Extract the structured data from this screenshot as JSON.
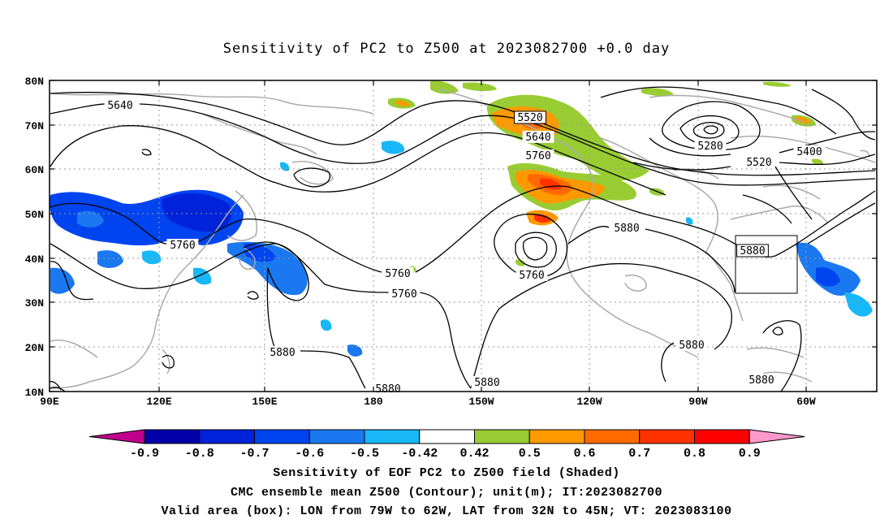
{
  "title": "Sensitivity of PC2 to Z500 at 2023082700 +0.0 day",
  "lat_labels": [
    "80N",
    "70N",
    "60N",
    "50N",
    "40N",
    "30N",
    "20N",
    "10N"
  ],
  "lon_labels": [
    "90E",
    "120E",
    "150E",
    "180",
    "150W",
    "120W",
    "90W",
    "60W"
  ],
  "contour_labels": [
    {
      "text": "5640",
      "kind": "z"
    },
    {
      "text": "5520",
      "kind": "z"
    },
    {
      "text": "5640",
      "kind": "z"
    },
    {
      "text": "5760",
      "kind": "z"
    },
    {
      "text": "5280",
      "kind": "z"
    },
    {
      "text": "5400",
      "kind": "z"
    },
    {
      "text": "5520",
      "kind": "z"
    },
    {
      "text": "5760",
      "kind": "z"
    },
    {
      "text": "5880",
      "kind": "z"
    },
    {
      "text": "5760",
      "kind": "z"
    },
    {
      "text": "5760",
      "kind": "z"
    },
    {
      "text": "5880",
      "kind": "z"
    },
    {
      "text": "5760",
      "kind": "z"
    },
    {
      "text": "5880",
      "kind": "z"
    },
    {
      "text": "5880",
      "kind": "z"
    },
    {
      "text": "5880",
      "kind": "z"
    },
    {
      "text": "5880",
      "kind": "z"
    },
    {
      "text": "5880",
      "kind": "z"
    }
  ],
  "colorbar": {
    "labels": [
      "-0.9",
      "-0.8",
      "-0.7",
      "-0.6",
      "-0.5",
      "-0.42",
      "0.42",
      "0.5",
      "0.6",
      "0.7",
      "0.8",
      "0.9"
    ],
    "colors": [
      "#c0008c",
      "#0000a8",
      "#0022d8",
      "#0044f0",
      "#1a78f0",
      "#18b8f8",
      "#ffffff",
      "#99cc33",
      "#ff9900",
      "#ff6a00",
      "#ff3300",
      "#ff0000",
      "#ff99cc"
    ]
  },
  "captions": [
    "Sensitivity of EOF PC2 to Z500 field (Shaded)",
    "CMC ensemble mean Z500 (Contour); unit(m); IT:2023082700",
    "Valid area (box): LON from 79W to 62W, LAT from 32N to 45N; VT: 2023083100"
  ],
  "valid_box": {
    "lon_from": "79W",
    "lon_to": "62W",
    "lat_from": "32N",
    "lat_to": "45N"
  }
}
